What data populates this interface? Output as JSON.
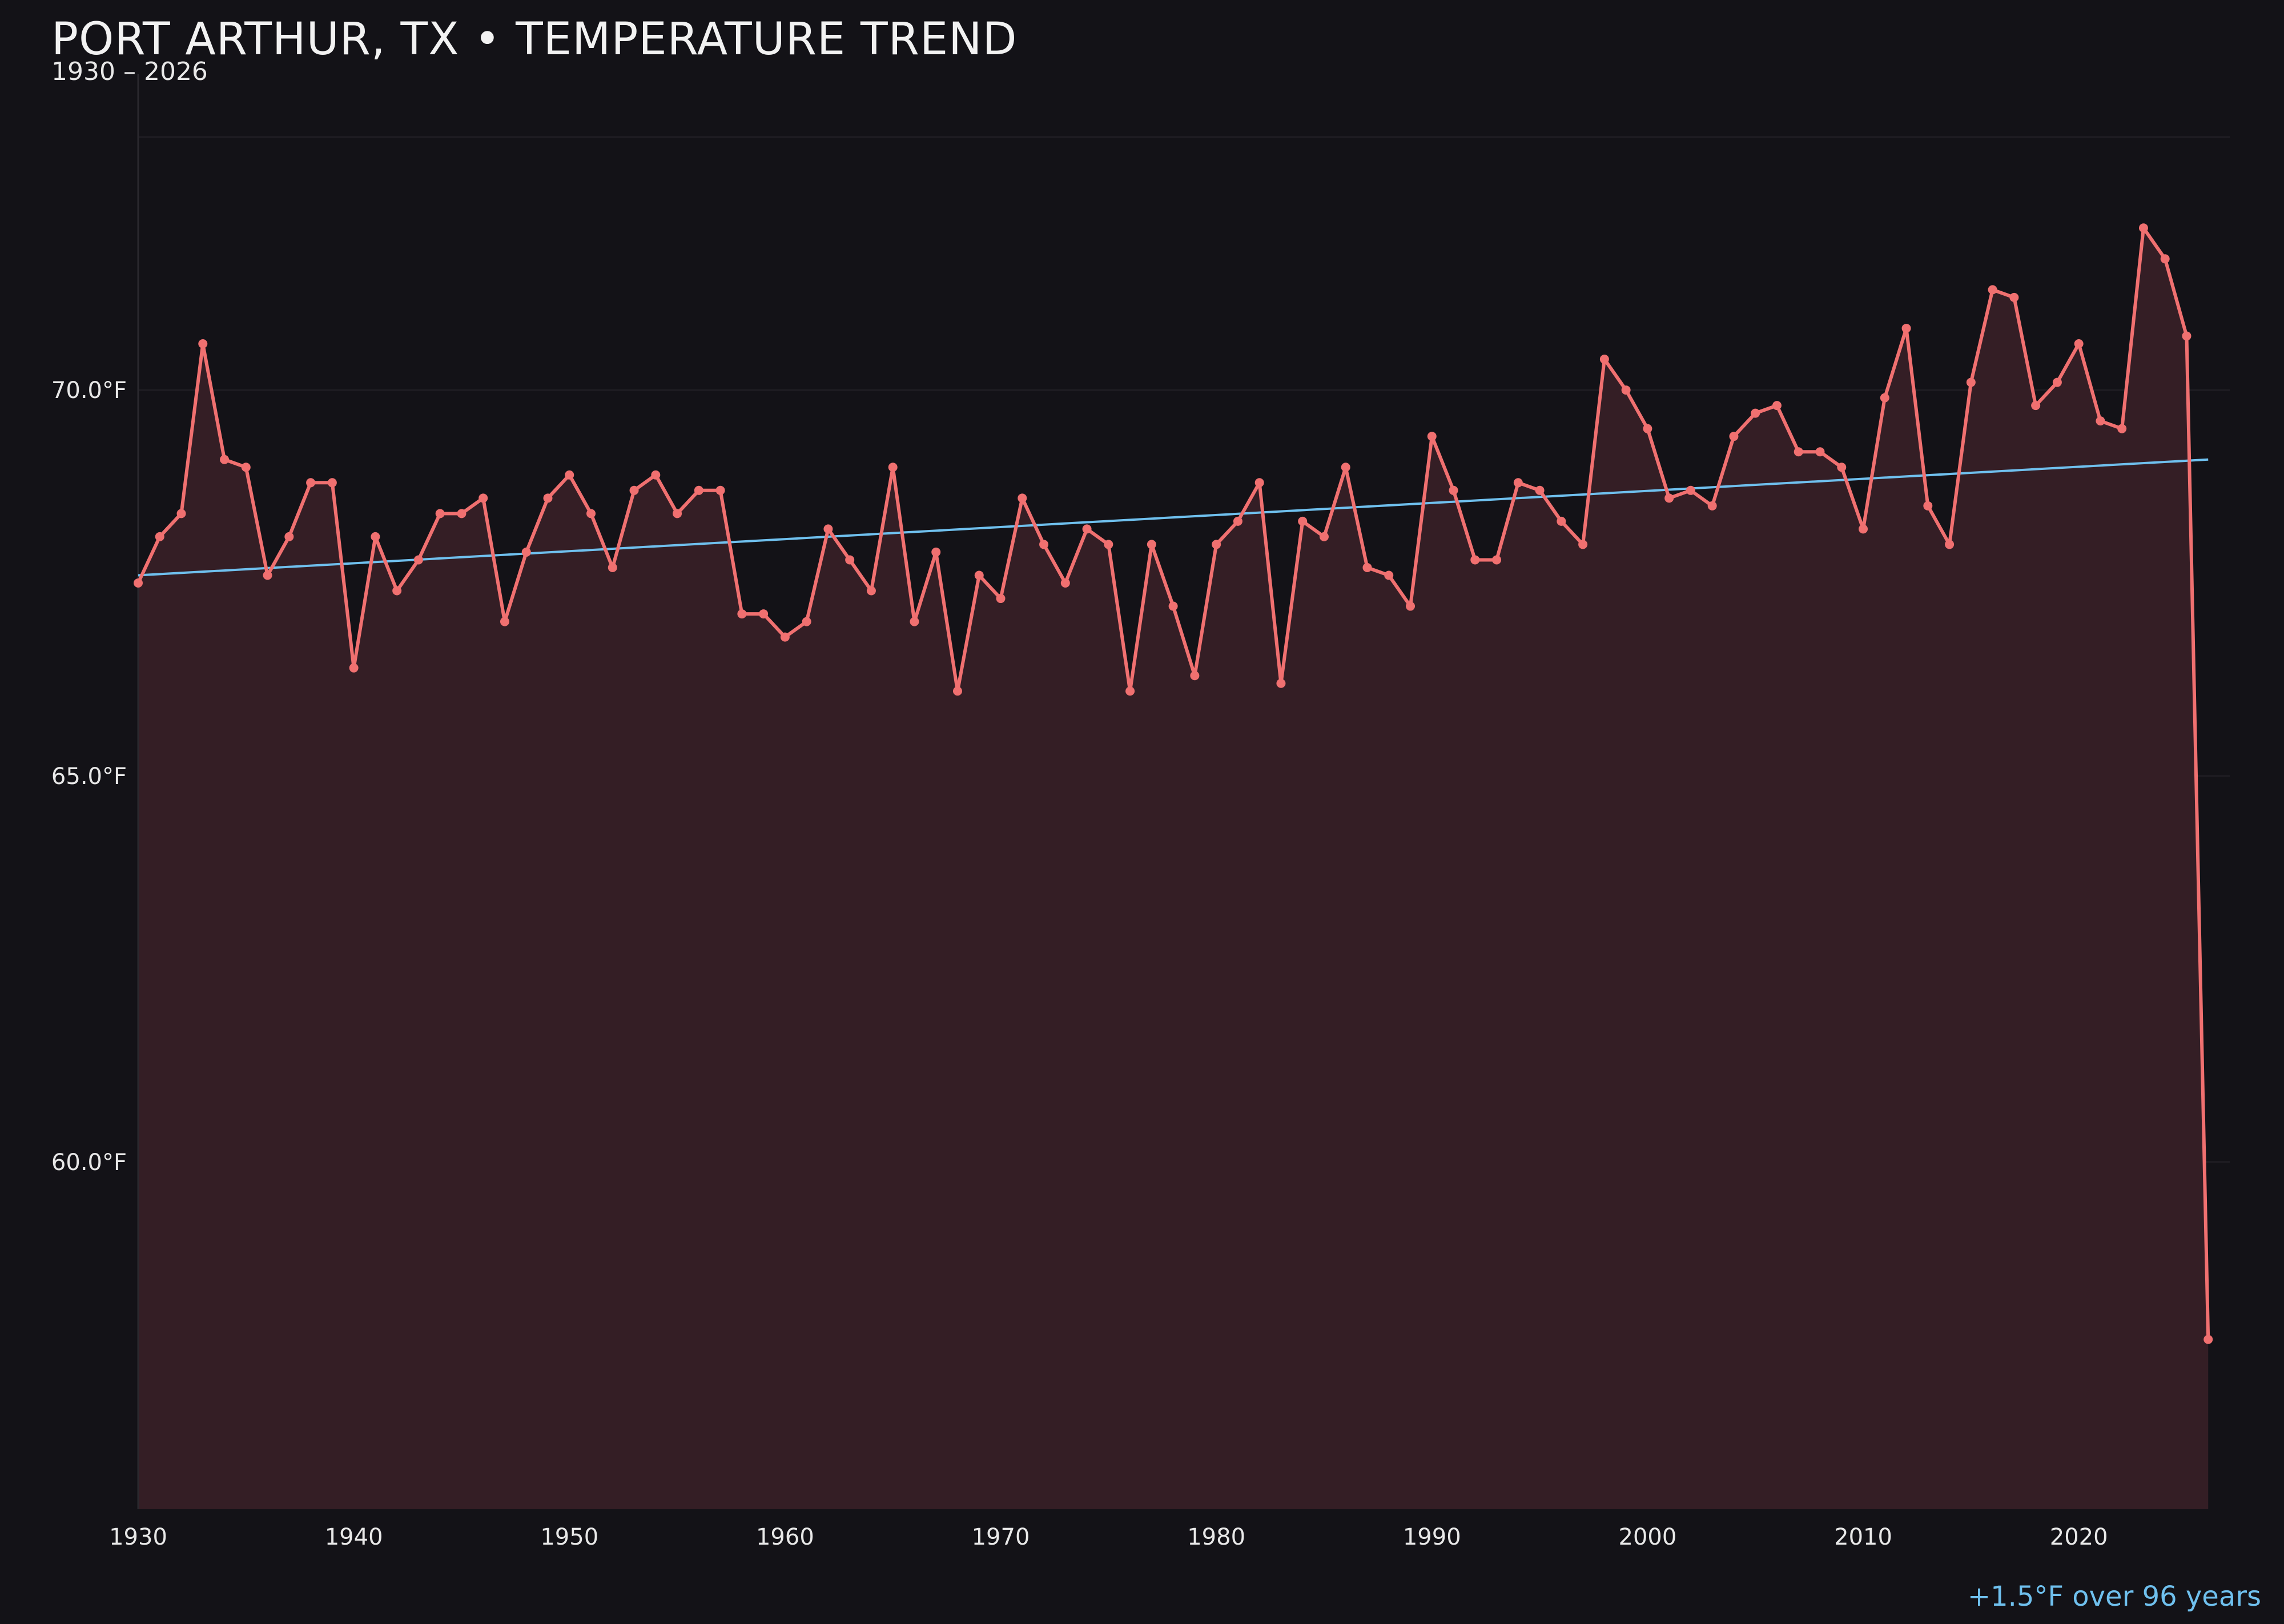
{
  "title": "PORT ARTHUR, TX • TEMPERATURE TREND",
  "subtitle": "1930 – 2026",
  "footnote": "+1.5°F over 96 years",
  "colors": {
    "background": "#131217",
    "series_line": "#f07070",
    "area_fill": "#341e25",
    "trend_line": "#6fc0ee",
    "grid": "#1f1d23",
    "axis": "#2a282e"
  },
  "chart_data": {
    "type": "line",
    "title": "PORT ARTHUR, TX • TEMPERATURE TREND",
    "subtitle": "1930 – 2026",
    "xlabel": "",
    "ylabel": "",
    "xlim": [
      1930,
      2027
    ],
    "ylim": [
      55.5,
      73.5
    ],
    "grid": true,
    "x_ticks": [
      1930,
      1940,
      1950,
      1960,
      1970,
      1980,
      1990,
      2000,
      2010,
      2020
    ],
    "x_tick_labels": [
      "1930",
      "1940",
      "1950",
      "1960",
      "1970",
      "1980",
      "1990",
      "2000",
      "2010",
      "2020"
    ],
    "y_ticks": [
      60,
      65,
      70
    ],
    "y_tick_labels": [
      "60.0°F",
      "65.0°F",
      "70.0°F"
    ],
    "x": [
      1930,
      1931,
      1932,
      1933,
      1934,
      1935,
      1936,
      1937,
      1938,
      1939,
      1940,
      1941,
      1942,
      1943,
      1944,
      1945,
      1946,
      1947,
      1948,
      1949,
      1950,
      1951,
      1952,
      1953,
      1954,
      1955,
      1956,
      1957,
      1958,
      1959,
      1960,
      1961,
      1962,
      1963,
      1964,
      1965,
      1966,
      1967,
      1968,
      1969,
      1970,
      1971,
      1972,
      1973,
      1974,
      1975,
      1976,
      1977,
      1978,
      1979,
      1980,
      1981,
      1982,
      1983,
      1984,
      1985,
      1986,
      1987,
      1988,
      1989,
      1990,
      1991,
      1992,
      1993,
      1994,
      1995,
      1996,
      1997,
      1998,
      1999,
      2000,
      2001,
      2002,
      2003,
      2004,
      2005,
      2006,
      2007,
      2008,
      2009,
      2010,
      2011,
      2012,
      2013,
      2014,
      2015,
      2016,
      2017,
      2018,
      2019,
      2020,
      2021,
      2022,
      2023,
      2024,
      2025,
      2026
    ],
    "series": [
      {
        "values": [
          67.5,
          68.1,
          68.4,
          70.6,
          69.1,
          69.0,
          67.6,
          68.1,
          68.8,
          68.8,
          66.4,
          68.1,
          67.4,
          67.8,
          68.4,
          68.4,
          68.6,
          67.0,
          67.9,
          68.6,
          68.9,
          68.4,
          67.7,
          68.7,
          68.9,
          68.4,
          68.7,
          68.7,
          67.1,
          67.1,
          66.8,
          67.0,
          68.2,
          67.8,
          67.4,
          69.0,
          67.0,
          67.9,
          66.1,
          67.6,
          67.3,
          68.6,
          68.0,
          67.5,
          68.2,
          68.0,
          66.1,
          68.0,
          67.2,
          66.3,
          68.0,
          68.3,
          68.8,
          66.2,
          68.3,
          68.1,
          69.0,
          67.7,
          67.6,
          67.2,
          69.4,
          68.7,
          67.8,
          67.8,
          68.8,
          68.7,
          68.3,
          68.0,
          70.4,
          70.0,
          69.5,
          68.6,
          68.7,
          68.5,
          69.4,
          69.7,
          69.8,
          69.2,
          69.2,
          69.0,
          68.2,
          69.9,
          70.8,
          68.5,
          68.0,
          70.1,
          71.3,
          71.2,
          69.8,
          70.1,
          70.6,
          69.6,
          69.5,
          72.1,
          71.7,
          70.7,
          57.7
        ]
      }
    ],
    "trend": {
      "x": [
        1930,
        2026
      ],
      "values": [
        67.6,
        69.1
      ]
    }
  }
}
